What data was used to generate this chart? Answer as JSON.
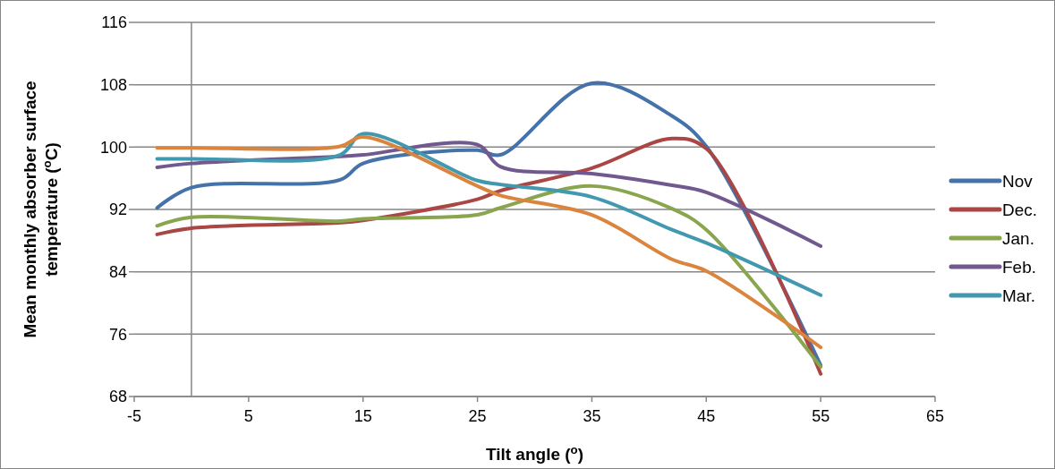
{
  "chart_data": {
    "type": "line",
    "xlabel": "Tilt angle ($^{o}$)",
    "ylabel": "Mean monthly absorber surface temperature ($^{o}$C)",
    "x": [
      -3,
      0,
      13,
      15,
      25,
      27,
      35,
      42,
      45,
      55
    ],
    "xlim": [
      -5,
      65
    ],
    "xticks": [
      -5,
      5,
      15,
      25,
      35,
      45,
      55,
      65
    ],
    "ylim": [
      68,
      116
    ],
    "yticks": [
      68,
      76,
      84,
      92,
      100,
      108,
      116
    ],
    "grid": "y",
    "legend": "right",
    "marker": "none",
    "line_style": "solid",
    "series": [
      {
        "name": "Nov",
        "color": "#4672aa",
        "values": [
          92.2,
          94.8,
          95.8,
          97.9,
          99.6,
          99.0,
          108.2,
          104,
          100.1,
          72
        ]
      },
      {
        "name": "Dec.",
        "color": "#aa4644",
        "values": [
          88.8,
          89.6,
          90.3,
          90.6,
          93.3,
          94.4,
          97.3,
          101.1,
          99.8,
          70.9
        ]
      },
      {
        "name": "Jan.",
        "color": "#89a54e",
        "values": [
          89.9,
          91.0,
          90.5,
          90.8,
          91.3,
          92.2,
          95.0,
          92.1,
          89.4,
          71.8
        ]
      },
      {
        "name": "Feb.",
        "color": "#71588f",
        "values": [
          97.4,
          97.9,
          98.8,
          99.0,
          100.3,
          97.5,
          96.6,
          95.1,
          94.2,
          87.3
        ]
      },
      {
        "name": "Mar.",
        "color": "#4198af",
        "values": [
          98.5,
          98.5,
          99.0,
          101.7,
          95.7,
          95.2,
          93.6,
          89.4,
          87.7,
          81.0
        ]
      },
      {
        "color": "#db843d",
        "values": [
          99.9,
          99.9,
          100.1,
          101.3,
          95.0,
          93.8,
          91.3,
          85.6,
          84.1,
          74.3
        ]
      }
    ]
  }
}
